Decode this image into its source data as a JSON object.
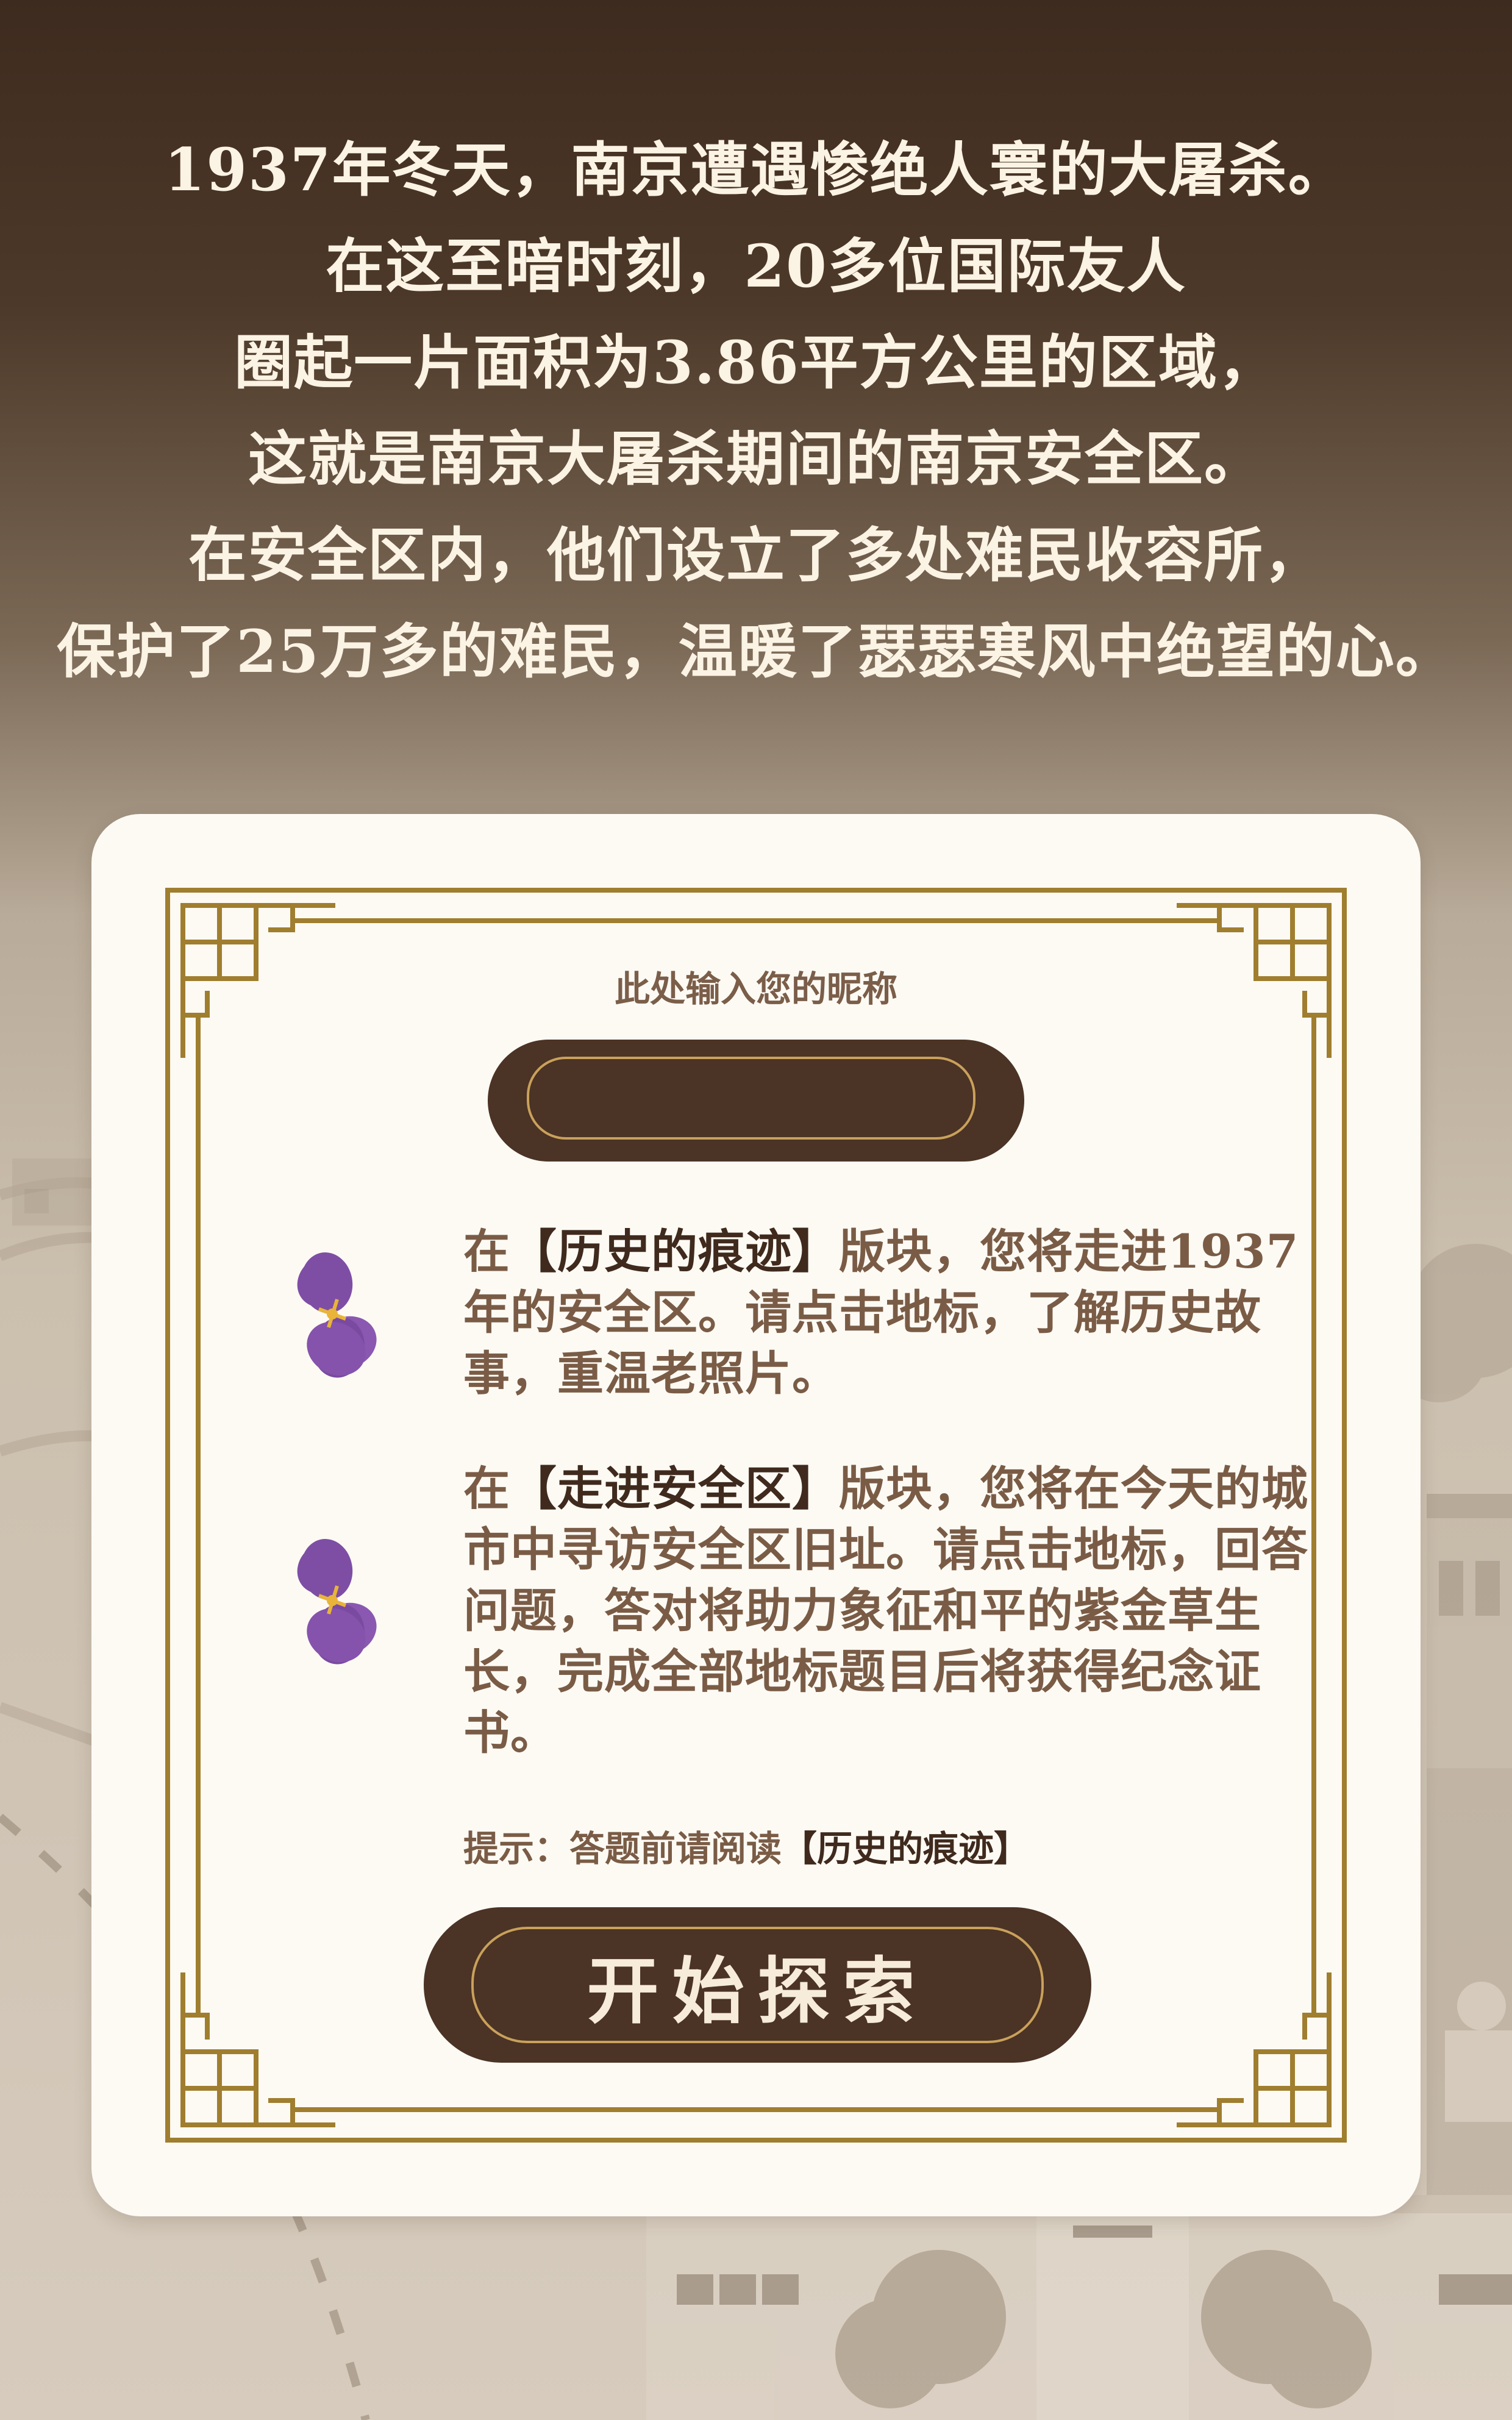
{
  "intro": {
    "lines": [
      "1937年冬天，南京遭遇惨绝人寰的大屠杀。",
      "在这至暗时刻，20多位国际友人",
      "圈起一片面积为3.86平方公里的区域，",
      "这就是南京大屠杀期间的南京安全区。",
      "在安全区内，他们设立了多处难民收容所，",
      "保护了25万多的难民，温暖了瑟瑟寒风中绝望的心。"
    ]
  },
  "form": {
    "nickname_label": "此处输入您的昵称",
    "nickname_value": "",
    "nickname_placeholder": "此处输入您的昵称"
  },
  "sections": [
    {
      "prefix": "在",
      "name": "【历史的痕迹】",
      "text": "版块，您将走进1937年的安全区。请点击地标，了解历史故事，重温老照片。"
    },
    {
      "prefix": "在",
      "name": "【走进安全区】",
      "text": "版块，您将在今天的城市中寻访安全区旧址。请点击地标，回答问题，答对将助力象征和平的紫金草生长，完成全部地标题目后将获得纪念证书。"
    }
  ],
  "tip": {
    "label": "提示：答题前请阅读",
    "link": "【历史的痕迹】"
  },
  "start_button": {
    "label": "开始探索"
  },
  "colors": {
    "dark_brown": "#4b3325",
    "gold": "#c9a15b",
    "frame_gold": "#a07e2f",
    "text_brown": "#7a5c46",
    "flower_purple": "#7e4ea5"
  },
  "icons": {
    "flower": "purple-violet-flower-icon"
  }
}
